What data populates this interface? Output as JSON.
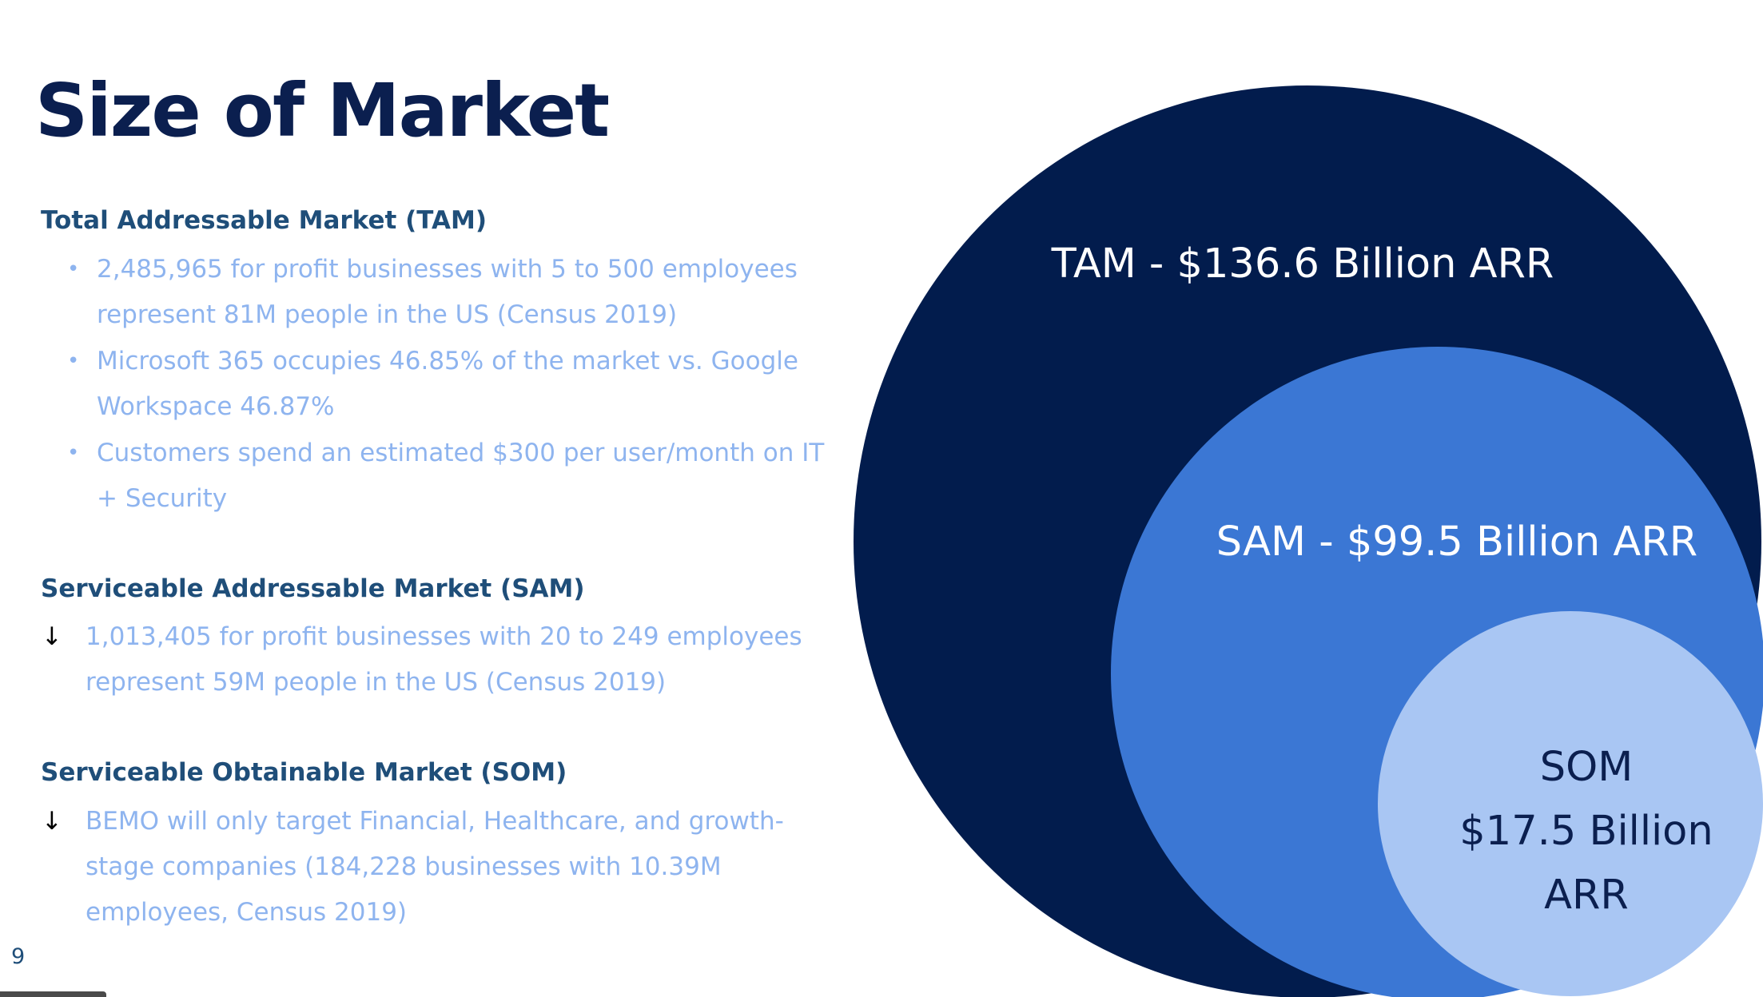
{
  "title": "Size of Market",
  "page_number": "9",
  "tam_section": {
    "heading": "Total Addressable Market (TAM)",
    "bullets": [
      [
        "2,485,965 for profit businesses with 5 to 500 employees",
        "represent 81M people in the US (Census 2019)"
      ],
      [
        "Microsoft 365 occupies 46.85% of the market vs. Google",
        "Workspace 46.87%"
      ],
      [
        "Customers spend an estimated $300 per user/month on IT",
        "+ Security"
      ]
    ]
  },
  "sam_section": {
    "heading": "Serviceable Addressable Market (SAM)",
    "arrow": "↓",
    "lines": [
      "1,013,405 for profit businesses with 20 to 249 employees",
      "represent 59M people in the US (Census 2019)"
    ]
  },
  "som_section": {
    "heading": "Serviceable Obtainable Market (SOM)",
    "arrow": "↓",
    "lines": [
      "BEMO will only target Financial, Healthcare, and growth-",
      "stage companies (184,228 businesses with 10.39M",
      "employees, Census 2019)"
    ]
  },
  "circles": {
    "tam_label": "TAM - $136.6 Billion ARR",
    "sam_label": "SAM - $99.5 Billion ARR",
    "som_label": [
      "SOM",
      "$17.5 Billion",
      "ARR"
    ]
  },
  "colors": {
    "title": "#0b1f4f",
    "heading": "#1f4e79",
    "body": "#8eb4ef",
    "tam_circle": "#021c4d",
    "sam_circle": "#3b77d4",
    "som_circle": "#a9c6f3",
    "som_text": "#0b1f4f"
  },
  "bullet_char": "•"
}
